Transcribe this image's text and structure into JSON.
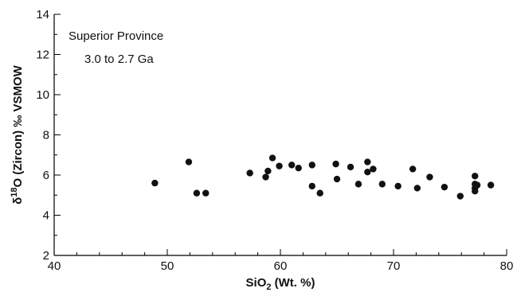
{
  "chart_data": {
    "type": "scatter",
    "xlabel": {
      "main": "SiO",
      "sub": "2",
      "rest": " (Wt. %)"
    },
    "ylabel": {
      "pre": "δ",
      "sup": "18",
      "rest": "O (Zircon) ‰ VSMOW"
    },
    "annotations": [
      "Superior Province",
      "3.0 to 2.7 Ga"
    ],
    "xlim": [
      40,
      80
    ],
    "ylim": [
      2,
      14
    ],
    "xticks": [
      40,
      50,
      60,
      70,
      80
    ],
    "yticks": [
      2,
      4,
      6,
      8,
      10,
      12,
      14
    ],
    "x_minor_step": 2,
    "y_minor_step": 1,
    "grid": false,
    "marker_color": "#111111",
    "points": [
      {
        "x": 48.9,
        "y": 5.6
      },
      {
        "x": 51.9,
        "y": 6.65
      },
      {
        "x": 52.6,
        "y": 5.1
      },
      {
        "x": 53.4,
        "y": 5.1
      },
      {
        "x": 57.3,
        "y": 6.1
      },
      {
        "x": 58.7,
        "y": 5.9
      },
      {
        "x": 58.9,
        "y": 6.2
      },
      {
        "x": 59.3,
        "y": 6.85
      },
      {
        "x": 59.9,
        "y": 6.45
      },
      {
        "x": 61.0,
        "y": 6.5
      },
      {
        "x": 61.6,
        "y": 6.35
      },
      {
        "x": 62.8,
        "y": 6.5
      },
      {
        "x": 62.8,
        "y": 5.45
      },
      {
        "x": 63.5,
        "y": 5.1
      },
      {
        "x": 64.9,
        "y": 6.55
      },
      {
        "x": 65.0,
        "y": 5.8
      },
      {
        "x": 66.2,
        "y": 6.4
      },
      {
        "x": 66.9,
        "y": 5.55
      },
      {
        "x": 67.7,
        "y": 6.65
      },
      {
        "x": 67.7,
        "y": 6.15
      },
      {
        "x": 68.2,
        "y": 6.3
      },
      {
        "x": 69.0,
        "y": 5.55
      },
      {
        "x": 70.4,
        "y": 5.45
      },
      {
        "x": 71.7,
        "y": 6.3
      },
      {
        "x": 72.1,
        "y": 5.35
      },
      {
        "x": 73.2,
        "y": 5.9
      },
      {
        "x": 74.5,
        "y": 5.4
      },
      {
        "x": 75.9,
        "y": 4.95
      },
      {
        "x": 77.2,
        "y": 5.95
      },
      {
        "x": 77.2,
        "y": 5.55
      },
      {
        "x": 77.2,
        "y": 5.35
      },
      {
        "x": 77.2,
        "y": 5.2
      },
      {
        "x": 77.4,
        "y": 5.5
      },
      {
        "x": 78.6,
        "y": 5.5
      }
    ]
  }
}
